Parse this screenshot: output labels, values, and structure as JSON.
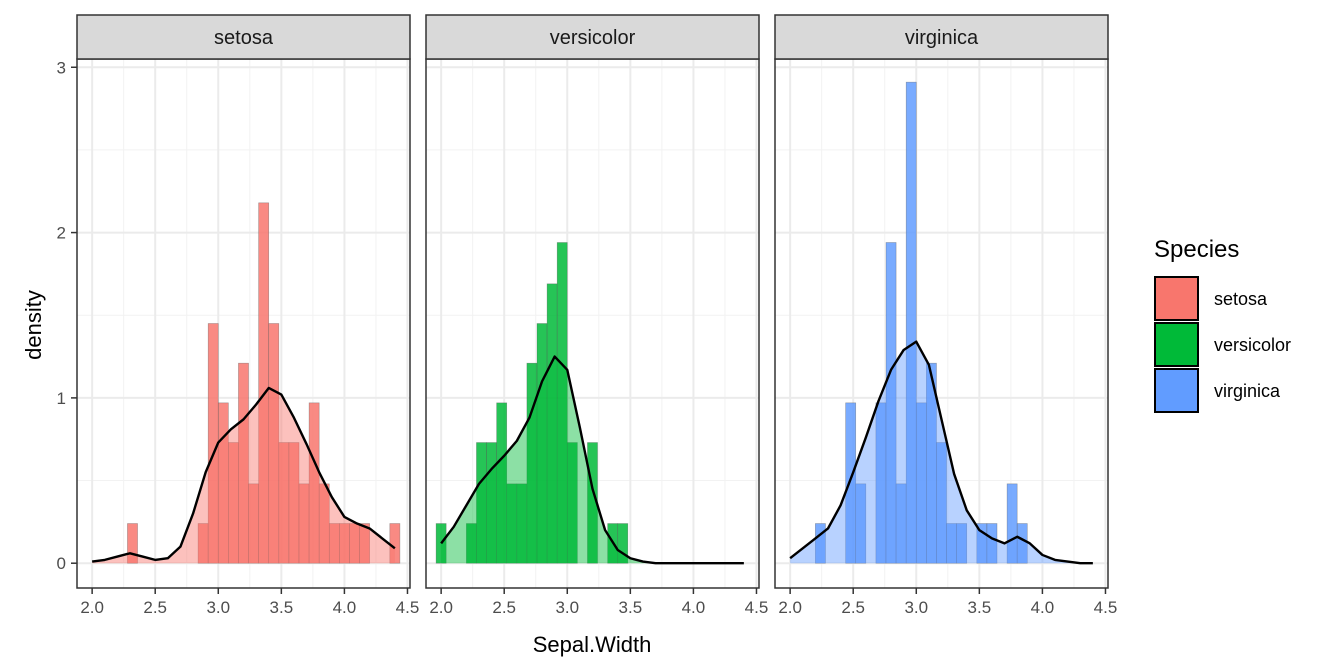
{
  "chart_data": {
    "type": "bar",
    "xlabel": "Sepal.Width",
    "ylabel": "density",
    "x_ticks": [
      "2.0",
      "2.5",
      "3.0",
      "3.5",
      "4.0",
      "4.5"
    ],
    "y_ticks": [
      "0",
      "1",
      "2",
      "3"
    ],
    "xlim": [
      1.88,
      4.52
    ],
    "ylim": [
      -0.15,
      3.05
    ],
    "bin_width": 0.08,
    "grid": true,
    "legend": {
      "title": "Species",
      "position": "right"
    },
    "panels": [
      {
        "name": "setosa",
        "color": "#F8766D",
        "histogram": [
          {
            "x": 2.32,
            "y": 0.24
          },
          {
            "x": 2.88,
            "y": 0.24
          },
          {
            "x": 2.96,
            "y": 1.45
          },
          {
            "x": 3.04,
            "y": 0.97
          },
          {
            "x": 3.12,
            "y": 0.73
          },
          {
            "x": 3.2,
            "y": 1.21
          },
          {
            "x": 3.28,
            "y": 0.48
          },
          {
            "x": 3.36,
            "y": 2.18
          },
          {
            "x": 3.44,
            "y": 1.45
          },
          {
            "x": 3.52,
            "y": 0.73
          },
          {
            "x": 3.6,
            "y": 0.73
          },
          {
            "x": 3.68,
            "y": 0.48
          },
          {
            "x": 3.76,
            "y": 0.97
          },
          {
            "x": 3.84,
            "y": 0.48
          },
          {
            "x": 3.92,
            "y": 0.24
          },
          {
            "x": 4.0,
            "y": 0.24
          },
          {
            "x": 4.08,
            "y": 0.24
          },
          {
            "x": 4.16,
            "y": 0.24
          },
          {
            "x": 4.4,
            "y": 0.24
          }
        ],
        "density": [
          [
            2.0,
            0.01
          ],
          [
            2.1,
            0.02
          ],
          [
            2.2,
            0.04
          ],
          [
            2.3,
            0.06
          ],
          [
            2.4,
            0.04
          ],
          [
            2.5,
            0.02
          ],
          [
            2.6,
            0.03
          ],
          [
            2.7,
            0.1
          ],
          [
            2.8,
            0.3
          ],
          [
            2.9,
            0.55
          ],
          [
            3.0,
            0.73
          ],
          [
            3.1,
            0.81
          ],
          [
            3.2,
            0.87
          ],
          [
            3.3,
            0.96
          ],
          [
            3.4,
            1.06
          ],
          [
            3.5,
            1.02
          ],
          [
            3.6,
            0.88
          ],
          [
            3.7,
            0.72
          ],
          [
            3.8,
            0.55
          ],
          [
            3.9,
            0.4
          ],
          [
            4.0,
            0.28
          ],
          [
            4.1,
            0.24
          ],
          [
            4.2,
            0.21
          ],
          [
            4.3,
            0.15
          ],
          [
            4.4,
            0.09
          ]
        ]
      },
      {
        "name": "versicolor",
        "color": "#00BA38",
        "histogram": [
          {
            "x": 2.0,
            "y": 0.24
          },
          {
            "x": 2.24,
            "y": 0.24
          },
          {
            "x": 2.32,
            "y": 0.73
          },
          {
            "x": 2.4,
            "y": 0.73
          },
          {
            "x": 2.48,
            "y": 0.97
          },
          {
            "x": 2.56,
            "y": 0.48
          },
          {
            "x": 2.64,
            "y": 0.48
          },
          {
            "x": 2.72,
            "y": 1.21
          },
          {
            "x": 2.8,
            "y": 1.45
          },
          {
            "x": 2.88,
            "y": 1.69
          },
          {
            "x": 2.96,
            "y": 1.94
          },
          {
            "x": 3.04,
            "y": 0.73
          },
          {
            "x": 3.2,
            "y": 0.73
          },
          {
            "x": 3.36,
            "y": 0.24
          },
          {
            "x": 3.44,
            "y": 0.24
          }
        ],
        "density": [
          [
            2.0,
            0.12
          ],
          [
            2.1,
            0.22
          ],
          [
            2.2,
            0.35
          ],
          [
            2.3,
            0.48
          ],
          [
            2.4,
            0.57
          ],
          [
            2.5,
            0.65
          ],
          [
            2.6,
            0.74
          ],
          [
            2.7,
            0.88
          ],
          [
            2.8,
            1.1
          ],
          [
            2.9,
            1.25
          ],
          [
            3.0,
            1.17
          ],
          [
            3.1,
            0.82
          ],
          [
            3.2,
            0.45
          ],
          [
            3.3,
            0.2
          ],
          [
            3.4,
            0.08
          ],
          [
            3.5,
            0.03
          ],
          [
            3.6,
            0.01
          ],
          [
            3.7,
            0.0
          ],
          [
            3.8,
            0.0
          ],
          [
            3.9,
            0.0
          ],
          [
            4.0,
            0.0
          ],
          [
            4.1,
            0.0
          ],
          [
            4.2,
            0.0
          ],
          [
            4.3,
            0.0
          ],
          [
            4.4,
            0.0
          ]
        ]
      },
      {
        "name": "virginica",
        "color": "#619CFF",
        "histogram": [
          {
            "x": 2.24,
            "y": 0.24
          },
          {
            "x": 2.48,
            "y": 0.97
          },
          {
            "x": 2.56,
            "y": 0.48
          },
          {
            "x": 2.72,
            "y": 0.97
          },
          {
            "x": 2.8,
            "y": 1.94
          },
          {
            "x": 2.88,
            "y": 0.48
          },
          {
            "x": 2.96,
            "y": 2.91
          },
          {
            "x": 3.04,
            "y": 0.97
          },
          {
            "x": 3.12,
            "y": 1.21
          },
          {
            "x": 3.2,
            "y": 0.73
          },
          {
            "x": 3.28,
            "y": 0.24
          },
          {
            "x": 3.36,
            "y": 0.24
          },
          {
            "x": 3.52,
            "y": 0.24
          },
          {
            "x": 3.6,
            "y": 0.24
          },
          {
            "x": 3.76,
            "y": 0.48
          },
          {
            "x": 3.84,
            "y": 0.24
          }
        ],
        "density": [
          [
            2.0,
            0.03
          ],
          [
            2.1,
            0.09
          ],
          [
            2.2,
            0.15
          ],
          [
            2.3,
            0.21
          ],
          [
            2.4,
            0.35
          ],
          [
            2.5,
            0.55
          ],
          [
            2.6,
            0.76
          ],
          [
            2.7,
            0.98
          ],
          [
            2.8,
            1.17
          ],
          [
            2.9,
            1.29
          ],
          [
            3.0,
            1.34
          ],
          [
            3.1,
            1.2
          ],
          [
            3.2,
            0.87
          ],
          [
            3.3,
            0.54
          ],
          [
            3.4,
            0.32
          ],
          [
            3.5,
            0.2
          ],
          [
            3.6,
            0.15
          ],
          [
            3.7,
            0.12
          ],
          [
            3.8,
            0.16
          ],
          [
            3.9,
            0.12
          ],
          [
            4.0,
            0.05
          ],
          [
            4.1,
            0.02
          ],
          [
            4.2,
            0.01
          ],
          [
            4.3,
            0.0
          ],
          [
            4.4,
            0.0
          ]
        ]
      }
    ]
  }
}
